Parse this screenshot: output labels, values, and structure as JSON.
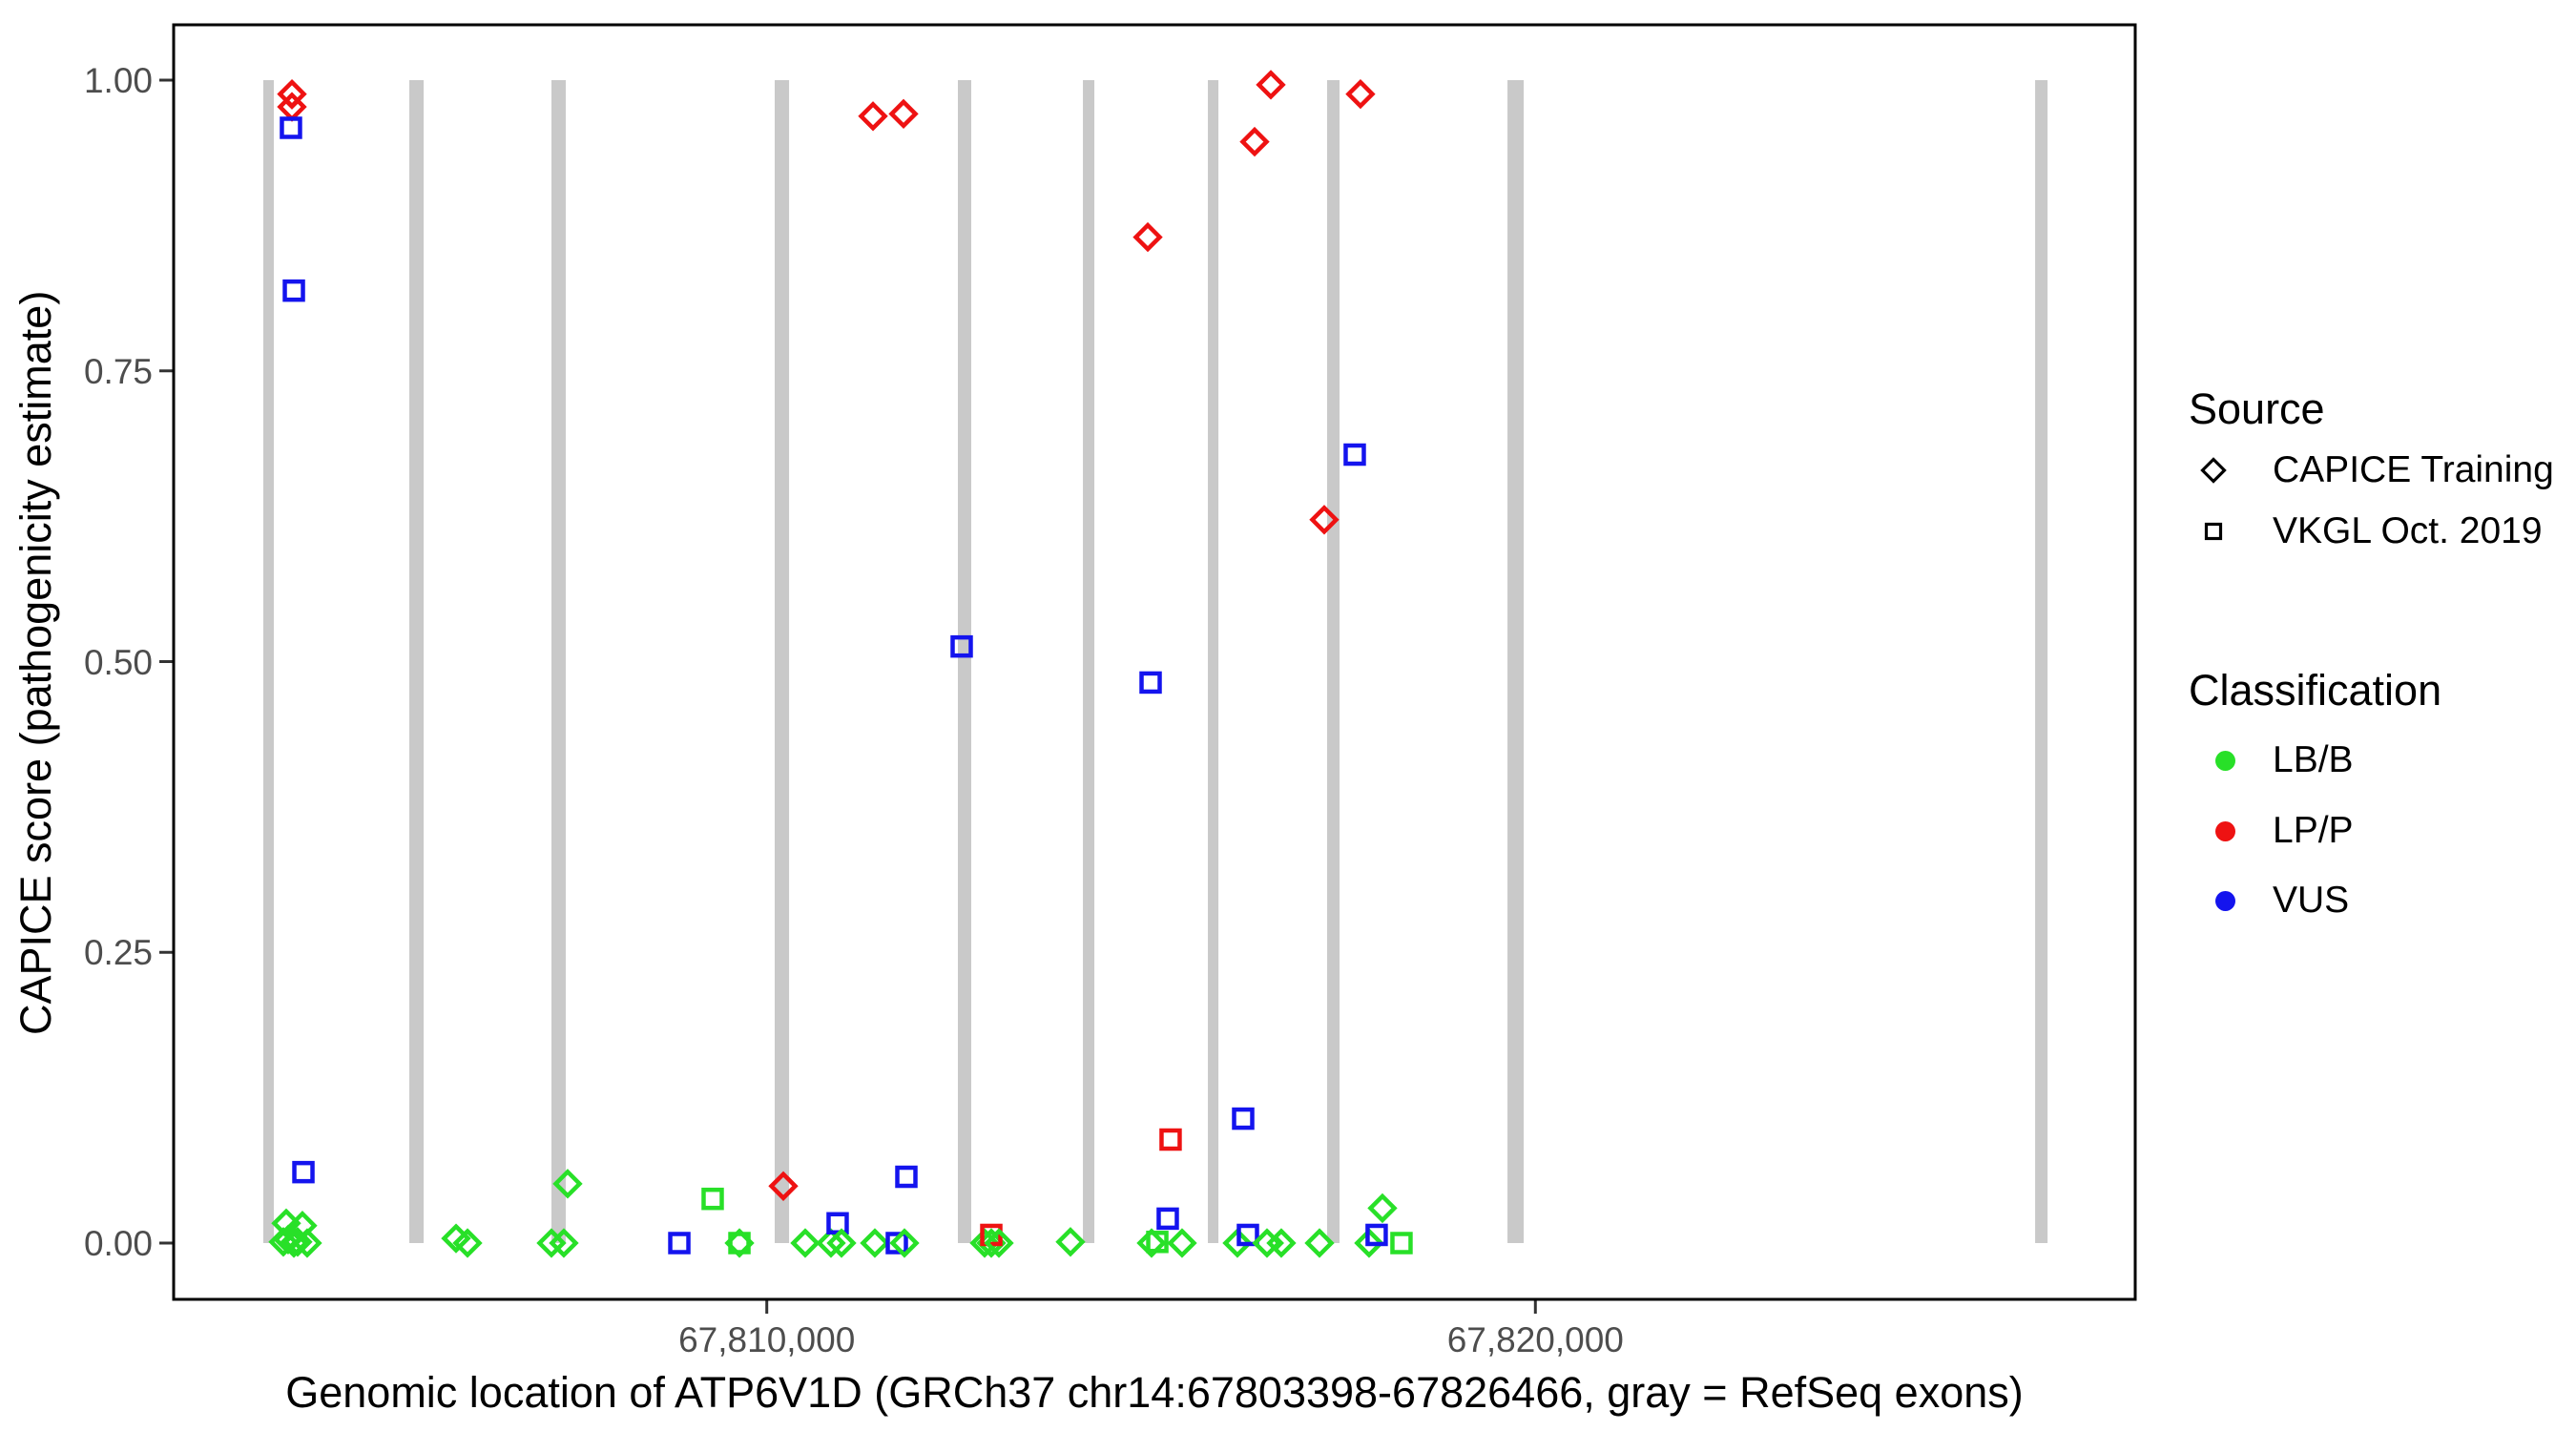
{
  "colors": {
    "LB/B": "#28E028",
    "LP/P": "#EE1212",
    "VUS": "#1414EE",
    "exon": "#C9C9C9",
    "tick_mark": "#333333",
    "tick_label": "#4d4d4d",
    "panel_border": "#000000"
  },
  "chart_data": {
    "type": "scatter",
    "title": "",
    "xlabel": "Genomic location of ATP6V1D (GRCh37 chr14:67803398-67826466, gray = RefSeq exons)",
    "ylabel": "CAPICE score (pathogenicity estimate)",
    "xlim": [
      67802295,
      67827792
    ],
    "ylim": [
      0.0,
      1.0
    ],
    "grid": "off",
    "x_ticks": [
      {
        "value": 67810000,
        "label": "67,810,000"
      },
      {
        "value": 67820000,
        "label": "67,820,000"
      }
    ],
    "y_ticks": [
      {
        "value": 0.0,
        "label": "0.00"
      },
      {
        "value": 0.25,
        "label": "0.25"
      },
      {
        "value": 0.5,
        "label": "0.50"
      },
      {
        "value": 0.75,
        "label": "0.75"
      },
      {
        "value": 1.0,
        "label": "1.00"
      }
    ],
    "exons_note": "gray vertical bars = RefSeq exons, drawn from score 0 to 1",
    "exons": [
      [
        67803449,
        67803586
      ],
      [
        67805349,
        67805535
      ],
      [
        67807198,
        67807384
      ],
      [
        67810103,
        67810290
      ],
      [
        67812486,
        67812660
      ],
      [
        67814113,
        67814262
      ],
      [
        67815739,
        67815876
      ],
      [
        67817290,
        67817452
      ],
      [
        67819637,
        67819848
      ],
      [
        67826502,
        67826664
      ]
    ],
    "shape_meaning": {
      "diamond": "CAPICE Training",
      "square": "VKGL Oct. 2019"
    },
    "points": [
      {
        "x": 67803710,
        "y": 0.001,
        "shape": "diamond",
        "cls": "LB/B"
      },
      {
        "x": 67803747,
        "y": 0.017,
        "shape": "diamond",
        "cls": "LB/B"
      },
      {
        "x": 67803772,
        "y": 0.003,
        "shape": "diamond",
        "cls": "LB/B"
      },
      {
        "x": 67803822,
        "y": 0.988,
        "shape": "diamond",
        "cls": "LP/P"
      },
      {
        "x": 67803822,
        "y": 0.982,
        "shape": "diamond",
        "cls": "LP/P",
        "small": true
      },
      {
        "x": 67803822,
        "y": 0.977,
        "shape": "diamond",
        "cls": "LP/P"
      },
      {
        "x": 67803809,
        "y": 0.959,
        "shape": "square",
        "cls": "VUS"
      },
      {
        "x": 67803847,
        "y": 0.819,
        "shape": "square",
        "cls": "VUS"
      },
      {
        "x": 67803847,
        "y": 0.0,
        "shape": "diamond",
        "cls": "LB/B"
      },
      {
        "x": 67803896,
        "y": 0.001,
        "shape": "diamond",
        "cls": "LB/B"
      },
      {
        "x": 67803958,
        "y": 0.015,
        "shape": "diamond",
        "cls": "LB/B"
      },
      {
        "x": 67803971,
        "y": 0.061,
        "shape": "square",
        "cls": "VUS"
      },
      {
        "x": 67804020,
        "y": 0.0,
        "shape": "diamond",
        "cls": "LB/B"
      },
      {
        "x": 67805957,
        "y": 0.004,
        "shape": "diamond",
        "cls": "LB/B"
      },
      {
        "x": 67806106,
        "y": 0.0,
        "shape": "diamond",
        "cls": "LB/B"
      },
      {
        "x": 67807198,
        "y": 0.0,
        "shape": "diamond",
        "cls": "LB/B"
      },
      {
        "x": 67807359,
        "y": 0.0,
        "shape": "diamond",
        "cls": "LB/B"
      },
      {
        "x": 67807409,
        "y": 0.051,
        "shape": "diamond",
        "cls": "LB/B"
      },
      {
        "x": 67808862,
        "y": 0.0,
        "shape": "square",
        "cls": "VUS"
      },
      {
        "x": 67809296,
        "y": 0.038,
        "shape": "square",
        "cls": "LB/B"
      },
      {
        "x": 67809644,
        "y": 0.0,
        "shape": "diamond",
        "cls": "LB/B"
      },
      {
        "x": 67809644,
        "y": 0.0,
        "shape": "square",
        "cls": "LB/B"
      },
      {
        "x": 67810215,
        "y": 0.049,
        "shape": "diamond",
        "cls": "LP/P"
      },
      {
        "x": 67810500,
        "y": 0.0,
        "shape": "diamond",
        "cls": "LB/B"
      },
      {
        "x": 67810835,
        "y": 0.0,
        "shape": "diamond",
        "cls": "LB/B"
      },
      {
        "x": 67810922,
        "y": 0.017,
        "shape": "square",
        "cls": "VUS"
      },
      {
        "x": 67810972,
        "y": 0.0,
        "shape": "diamond",
        "cls": "LB/B"
      },
      {
        "x": 67811382,
        "y": 0.969,
        "shape": "diamond",
        "cls": "LP/P"
      },
      {
        "x": 67811406,
        "y": 0.0,
        "shape": "diamond",
        "cls": "LB/B"
      },
      {
        "x": 67811692,
        "y": 0.0,
        "shape": "square",
        "cls": "VUS"
      },
      {
        "x": 67811779,
        "y": 0.971,
        "shape": "diamond",
        "cls": "LP/P"
      },
      {
        "x": 67811791,
        "y": 0.0,
        "shape": "diamond",
        "cls": "LB/B"
      },
      {
        "x": 67811816,
        "y": 0.057,
        "shape": "square",
        "cls": "VUS"
      },
      {
        "x": 67812536,
        "y": 0.513,
        "shape": "square",
        "cls": "VUS"
      },
      {
        "x": 67812834,
        "y": 0.0,
        "shape": "diamond",
        "cls": "LB/B"
      },
      {
        "x": 67812921,
        "y": 0.0,
        "shape": "diamond",
        "cls": "LB/B"
      },
      {
        "x": 67812921,
        "y": 0.007,
        "shape": "square",
        "cls": "LP/P"
      },
      {
        "x": 67813020,
        "y": 0.0,
        "shape": "diamond",
        "cls": "LB/B"
      },
      {
        "x": 67813951,
        "y": 0.001,
        "shape": "diamond",
        "cls": "LB/B"
      },
      {
        "x": 67814957,
        "y": 0.865,
        "shape": "diamond",
        "cls": "LP/P"
      },
      {
        "x": 67814994,
        "y": 0.482,
        "shape": "square",
        "cls": "VUS"
      },
      {
        "x": 67815006,
        "y": 0.0,
        "shape": "diamond",
        "cls": "LB/B"
      },
      {
        "x": 67815081,
        "y": 0.001,
        "shape": "square",
        "cls": "LB/B"
      },
      {
        "x": 67815217,
        "y": 0.021,
        "shape": "square",
        "cls": "VUS"
      },
      {
        "x": 67815254,
        "y": 0.089,
        "shape": "square",
        "cls": "LP/P"
      },
      {
        "x": 67815403,
        "y": 0.0,
        "shape": "diamond",
        "cls": "LB/B"
      },
      {
        "x": 67816123,
        "y": 0.0,
        "shape": "diamond",
        "cls": "LB/B"
      },
      {
        "x": 67816198,
        "y": 0.107,
        "shape": "square",
        "cls": "VUS"
      },
      {
        "x": 67816260,
        "y": 0.007,
        "shape": "square",
        "cls": "VUS"
      },
      {
        "x": 67816347,
        "y": 0.947,
        "shape": "diamond",
        "cls": "LP/P"
      },
      {
        "x": 67816508,
        "y": 0.0,
        "shape": "diamond",
        "cls": "LB/B"
      },
      {
        "x": 67816558,
        "y": 0.996,
        "shape": "diamond",
        "cls": "LP/P"
      },
      {
        "x": 67816620,
        "y": 0.0,
        "shape": "diamond",
        "cls": "LB/B",
        "small": true
      },
      {
        "x": 67816694,
        "y": 0.0,
        "shape": "diamond",
        "cls": "LB/B"
      },
      {
        "x": 67817191,
        "y": 0.0,
        "shape": "diamond",
        "cls": "LB/B"
      },
      {
        "x": 67817253,
        "y": 0.622,
        "shape": "diamond",
        "cls": "LP/P"
      },
      {
        "x": 67817650,
        "y": 0.678,
        "shape": "square",
        "cls": "VUS"
      },
      {
        "x": 67817724,
        "y": 0.988,
        "shape": "diamond",
        "cls": "LP/P"
      },
      {
        "x": 67817836,
        "y": 0.0,
        "shape": "diamond",
        "cls": "LB/B"
      },
      {
        "x": 67817935,
        "y": 0.007,
        "shape": "square",
        "cls": "VUS"
      },
      {
        "x": 67818010,
        "y": 0.03,
        "shape": "diamond",
        "cls": "LB/B"
      },
      {
        "x": 67818258,
        "y": 0.0,
        "shape": "square",
        "cls": "LB/B"
      }
    ],
    "legend": {
      "source_title": "Source",
      "source_items": [
        {
          "label": "CAPICE Training",
          "shape": "diamond"
        },
        {
          "label": "VKGL Oct. 2019",
          "shape": "square"
        }
      ],
      "classification_title": "Classification",
      "classification_items": [
        {
          "label": "LB/B",
          "color": "#28E028"
        },
        {
          "label": "LP/P",
          "color": "#EE1212"
        },
        {
          "label": "VUS",
          "color": "#1414EE"
        }
      ]
    }
  }
}
